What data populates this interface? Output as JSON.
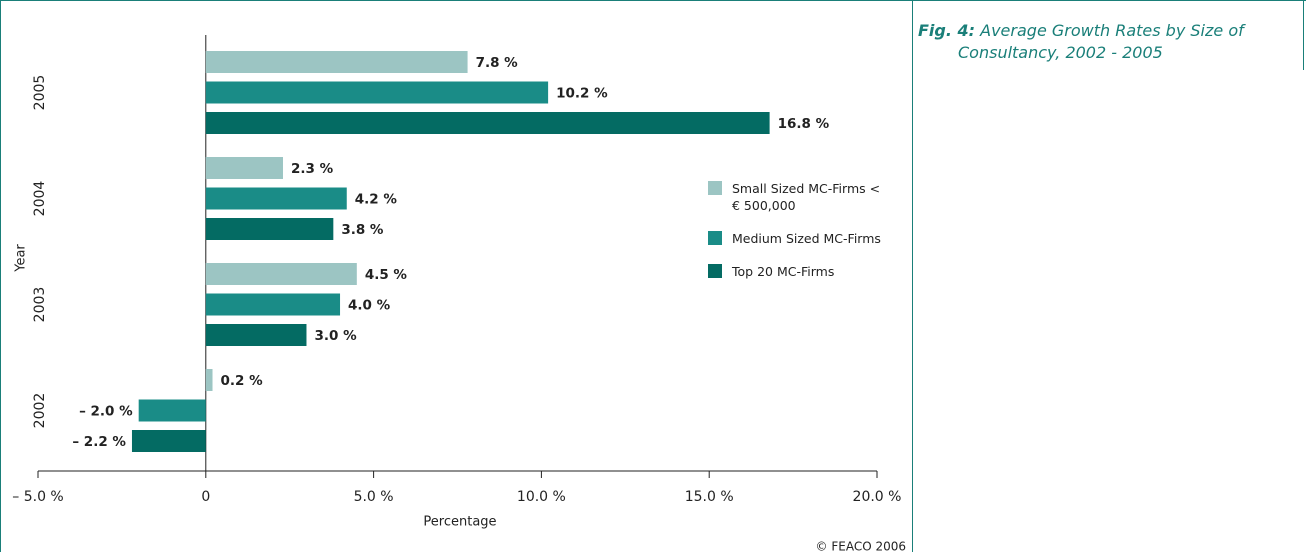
{
  "chart_data": {
    "type": "hbar",
    "figure_label": "Fig. 4:",
    "title": "Average Growth Rates by Size of Consultancy, 2002 - 2005",
    "x_label": "Percentage",
    "y_label": "Year",
    "source": "© FEACO 2006",
    "categories": [
      "2005",
      "2004",
      "2003",
      "2002"
    ],
    "series": [
      {
        "name": "Small Sized MC-Firms < € 500,000",
        "color": "#9cc5c3",
        "values": [
          7.8,
          2.3,
          4.5,
          0.2
        ],
        "value_labels": [
          "7.8 %",
          "2.3 %",
          "4.5 %",
          "0.2 %"
        ]
      },
      {
        "name": "Medium Sized MC-Firms",
        "color": "#1a8c87",
        "values": [
          10.2,
          4.2,
          4.0,
          -2.0
        ],
        "value_labels": [
          "10.2 %",
          "4.2 %",
          "4.0 %",
          "– 2.0 %"
        ]
      },
      {
        "name": "Top 20 MC-Firms",
        "color": "#046b63",
        "values": [
          16.8,
          3.8,
          3.0,
          -2.2
        ],
        "value_labels": [
          "16.8 %",
          "3.8 %",
          "3.0 %",
          "– 2.2 %"
        ]
      }
    ],
    "xlim": [
      -5,
      20
    ],
    "xticks": [
      {
        "value": -5,
        "label": "– 5.0 %"
      },
      0,
      {
        "value": 5,
        "label": "5.0 %"
      },
      {
        "value": 10,
        "label": "10.0 %"
      },
      {
        "value": 15,
        "label": "15.0 %"
      },
      {
        "value": 20,
        "label": "20.0 %"
      }
    ],
    "legend": "right"
  }
}
